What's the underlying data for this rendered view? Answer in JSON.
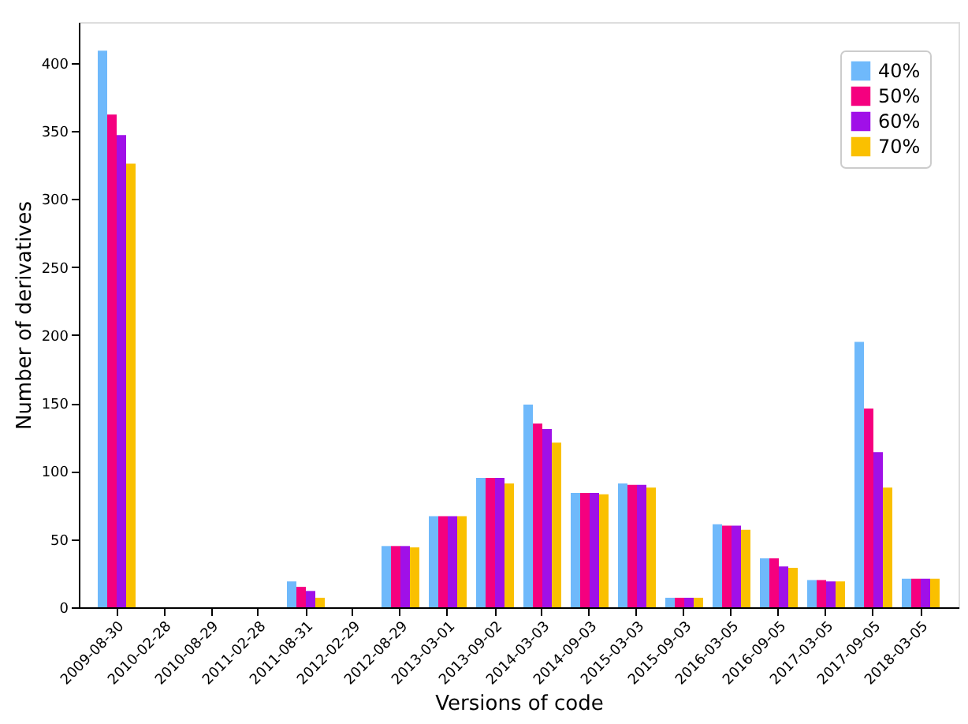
{
  "chart_data": {
    "type": "bar",
    "xlabel": "Versions of code",
    "ylabel": "Number of derivatives",
    "categories": [
      "2009-08-30",
      "2010-02-28",
      "2010-08-29",
      "2011-02-28",
      "2011-08-31",
      "2012-02-29",
      "2012-08-29",
      "2013-03-01",
      "2013-09-02",
      "2014-03-03",
      "2014-09-03",
      "2015-03-03",
      "2015-09-03",
      "2016-03-05",
      "2016-09-05",
      "2017-03-05",
      "2017-09-05",
      "2018-03-05"
    ],
    "series": [
      {
        "name": "40%",
        "color": "#6fb9fb",
        "values": [
          409,
          0,
          0,
          0,
          19,
          0,
          45,
          67,
          95,
          149,
          84,
          91,
          7,
          61,
          36,
          20,
          195,
          21
        ]
      },
      {
        "name": "50%",
        "color": "#f5007f",
        "values": [
          362,
          0,
          0,
          0,
          15,
          0,
          45,
          67,
          95,
          135,
          84,
          90,
          7,
          60,
          36,
          20,
          146,
          21
        ]
      },
      {
        "name": "60%",
        "color": "#a010e8",
        "values": [
          347,
          0,
          0,
          0,
          12,
          0,
          45,
          67,
          95,
          131,
          84,
          90,
          7,
          60,
          30,
          19,
          114,
          21
        ]
      },
      {
        "name": "70%",
        "color": "#fac000",
        "values": [
          326,
          0,
          0,
          0,
          7,
          0,
          44,
          67,
          91,
          121,
          83,
          88,
          7,
          57,
          29,
          19,
          88,
          21
        ]
      }
    ],
    "ylim": [
      0,
      430
    ],
    "yticks": [
      0,
      50,
      100,
      150,
      200,
      250,
      300,
      350,
      400
    ],
    "grid": false,
    "legend": "top right"
  }
}
